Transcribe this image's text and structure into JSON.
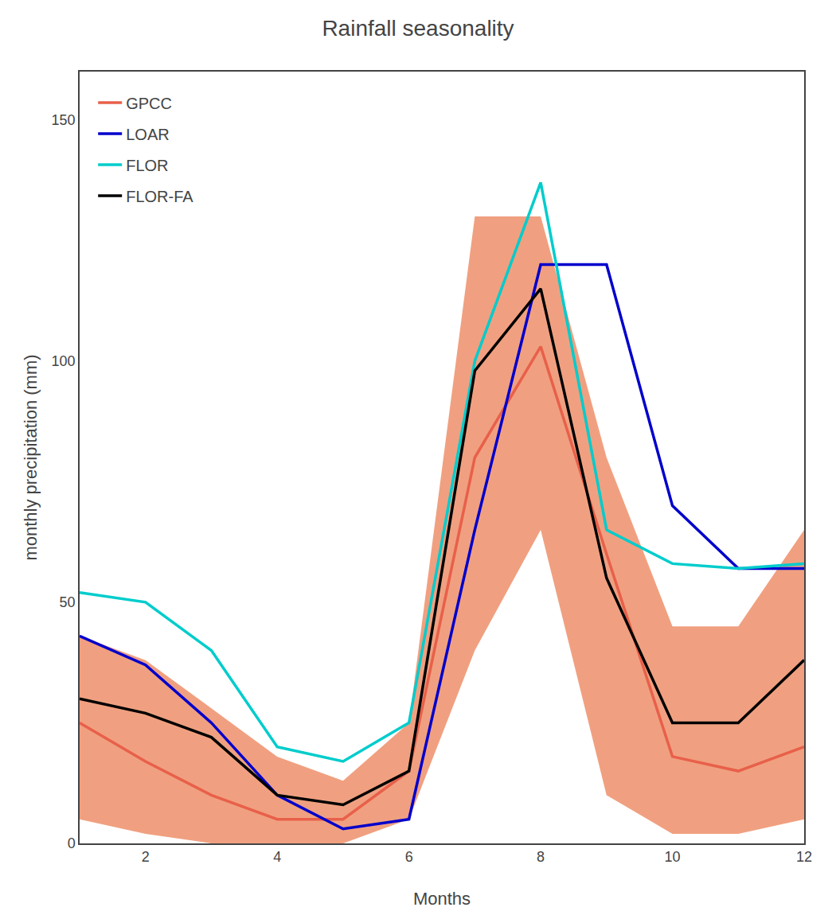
{
  "chart_data": {
    "type": "line",
    "title": "Rainfall seasonality",
    "xlabel": "Months",
    "ylabel": "monthly precipitation (mm)",
    "x": [
      1,
      2,
      3,
      4,
      5,
      6,
      7,
      8,
      9,
      10,
      11,
      12
    ],
    "series": [
      {
        "name": "GPCC",
        "color": "#e8604a",
        "values": [
          25,
          17,
          10,
          5,
          5,
          15,
          80,
          103,
          60,
          18,
          15,
          20
        ],
        "band": {
          "color": "#f0a080",
          "lower": [
            5,
            2,
            0,
            0,
            0,
            5,
            40,
            65,
            10,
            2,
            2,
            5
          ],
          "upper": [
            43,
            38,
            28,
            18,
            13,
            25,
            130,
            130,
            80,
            45,
            45,
            65
          ]
        }
      },
      {
        "name": "LOAR",
        "color": "#0000cc",
        "values": [
          43,
          37,
          25,
          10,
          3,
          5,
          65,
          120,
          120,
          70,
          57,
          57
        ]
      },
      {
        "name": "FLOR",
        "color": "#00cccc",
        "values": [
          52,
          50,
          40,
          20,
          17,
          25,
          100,
          137,
          65,
          58,
          57,
          58
        ]
      },
      {
        "name": "FLOR-FA",
        "color": "#000000",
        "values": [
          30,
          27,
          22,
          10,
          8,
          15,
          98,
          115,
          55,
          25,
          25,
          38
        ]
      }
    ],
    "xlim": [
      1,
      12
    ],
    "xticks": [
      2,
      4,
      6,
      8,
      10,
      12
    ],
    "ylim": [
      0,
      160
    ],
    "yticks": [
      0,
      50,
      100,
      150
    ],
    "grid": false,
    "legend": "upper left"
  }
}
